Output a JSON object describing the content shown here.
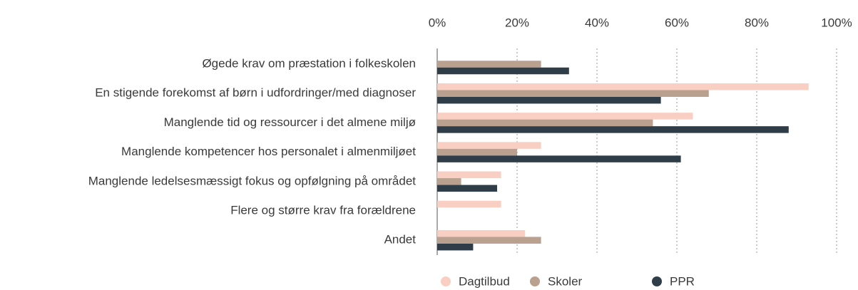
{
  "chart_data": {
    "type": "bar",
    "orientation": "horizontal",
    "categories": [
      "Øgede krav om præstation i folkeskolen",
      "En stigende forekomst af børn i udfordringer/med diagnoser",
      "Manglende tid og ressourcer i det almene miljø",
      "Manglende kompetencer hos personalet i almenmiljøet",
      "Manglende ledelsesmæssigt fokus og opfølgning på området",
      "Flere og større krav fra forældrene",
      "Andet"
    ],
    "series": [
      {
        "name": "Dagtilbud",
        "color": "#f9cfc3",
        "values": [
          0,
          93,
          64,
          26,
          16,
          16,
          22
        ]
      },
      {
        "name": "Skoler",
        "color": "#b9a08f",
        "values": [
          26,
          68,
          54,
          20,
          6,
          0,
          26
        ]
      },
      {
        "name": "PPR",
        "color": "#2f3d48",
        "values": [
          33,
          56,
          88,
          61,
          15,
          0,
          9
        ]
      }
    ],
    "xlim": [
      0,
      100
    ],
    "xticks": [
      {
        "value": 0,
        "label": "0%"
      },
      {
        "value": 20,
        "label": "20%"
      },
      {
        "value": 40,
        "label": "40%"
      },
      {
        "value": 60,
        "label": "60%"
      },
      {
        "value": 80,
        "label": "80%"
      },
      {
        "value": 100,
        "label": "100%"
      }
    ],
    "grid": true,
    "legend": "bottom"
  }
}
